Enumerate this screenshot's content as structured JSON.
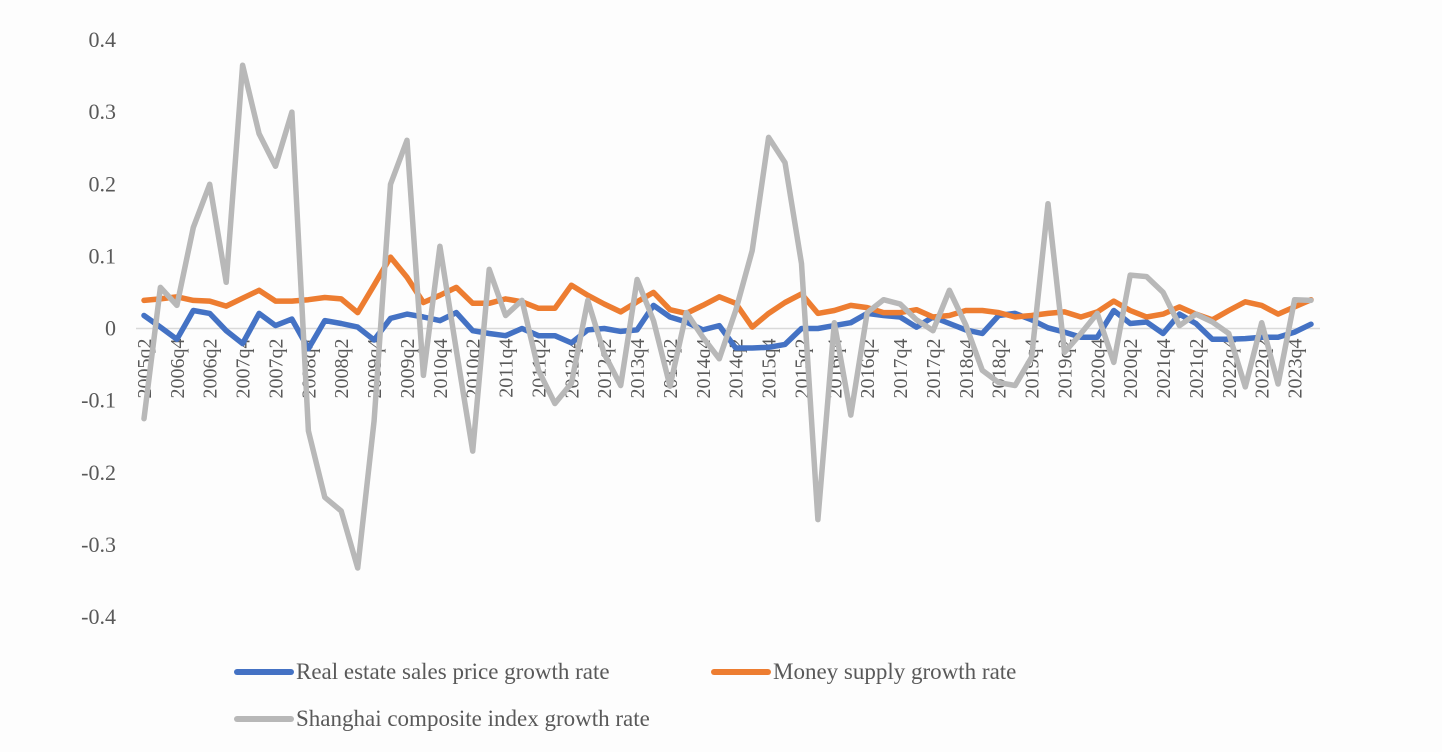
{
  "chart_data": {
    "type": "line",
    "title": "",
    "xlabel": "",
    "ylabel": "",
    "ylim": [
      -0.4,
      0.4
    ],
    "yticks": [
      "0.4",
      "0.3",
      "0.2",
      "0.1",
      "0",
      "-0.1",
      "-0.2",
      "-0.3",
      "-0.4"
    ],
    "ytick_values": [
      0.4,
      0.3,
      0.2,
      0.1,
      0,
      -0.1,
      -0.2,
      -0.3,
      -0.4
    ],
    "xtick_labels": [
      "2005q2",
      "2006q4",
      "2006q2",
      "2007q4",
      "2007q2",
      "2008q4",
      "2008q2",
      "2009q4",
      "2009q2",
      "2010q4",
      "2010q2",
      "2011q4",
      "2011q2",
      "2012q4",
      "2012q2",
      "2013q4",
      "2013q2",
      "2014q4",
      "2014q2",
      "2015q4",
      "2015q2",
      "2016q4",
      "2016q2",
      "2017q4",
      "2017q2",
      "2018q4",
      "2018q2",
      "2019q4",
      "2019q2",
      "2020q4",
      "2020q2",
      "2021q4",
      "2021q2",
      "2022q4",
      "2022q2",
      "2023q4"
    ],
    "points_per_label": 2,
    "zero_line": true,
    "grid": false,
    "legend_position": "bottom",
    "series": [
      {
        "name": "Real estate sales price growth rate",
        "color": "#4472C4",
        "values": [
          0.018,
          0.002,
          -0.015,
          0.025,
          0.021,
          -0.003,
          -0.021,
          0.021,
          0.004,
          0.013,
          -0.028,
          0.011,
          0.007,
          0.002,
          -0.016,
          0.014,
          0.02,
          0.016,
          0.011,
          0.022,
          -0.003,
          -0.007,
          -0.01,
          0.0,
          -0.01,
          -0.01,
          -0.02,
          -0.002,
          0.0,
          -0.004,
          -0.002,
          0.032,
          0.016,
          0.009,
          -0.002,
          0.004,
          -0.027,
          -0.027,
          -0.026,
          -0.022,
          0.0,
          0.0,
          0.004,
          0.008,
          0.021,
          0.018,
          0.016,
          0.002,
          0.016,
          0.007,
          -0.002,
          -0.007,
          0.018,
          0.021,
          0.012,
          0.001,
          -0.005,
          -0.012,
          -0.012,
          0.025,
          0.007,
          0.009,
          -0.007,
          0.02,
          0.007,
          -0.015,
          -0.015,
          -0.014,
          -0.012,
          -0.012,
          -0.005,
          0.006
        ]
      },
      {
        "name": "Money supply growth rate",
        "color": "#ED7D31",
        "values": [
          0.039,
          0.041,
          0.044,
          0.039,
          0.038,
          0.031,
          0.042,
          0.053,
          0.038,
          0.038,
          0.04,
          0.043,
          0.041,
          0.022,
          0.06,
          0.099,
          0.071,
          0.036,
          0.046,
          0.057,
          0.035,
          0.035,
          0.041,
          0.037,
          0.028,
          0.028,
          0.06,
          0.046,
          0.034,
          0.023,
          0.037,
          0.05,
          0.026,
          0.021,
          0.032,
          0.044,
          0.035,
          0.002,
          0.021,
          0.036,
          0.048,
          0.021,
          0.025,
          0.032,
          0.029,
          0.022,
          0.022,
          0.026,
          0.016,
          0.018,
          0.025,
          0.025,
          0.022,
          0.016,
          0.018,
          0.021,
          0.023,
          0.016,
          0.023,
          0.038,
          0.025,
          0.016,
          0.02,
          0.03,
          0.02,
          0.012,
          0.025,
          0.037,
          0.032,
          0.02,
          0.03,
          0.04
        ]
      },
      {
        "name": "Shanghai composite index growth rate",
        "color": "#B8B8B8",
        "values": [
          -0.125,
          0.057,
          0.032,
          0.14,
          0.2,
          0.064,
          0.365,
          0.27,
          0.225,
          0.3,
          -0.142,
          -0.234,
          -0.253,
          -0.332,
          -0.128,
          0.2,
          0.261,
          -0.065,
          0.114,
          -0.03,
          -0.17,
          0.082,
          0.018,
          0.039,
          -0.058,
          -0.104,
          -0.076,
          0.039,
          -0.035,
          -0.079,
          0.068,
          0.011,
          -0.08,
          0.022,
          -0.012,
          -0.042,
          0.025,
          0.108,
          0.265,
          0.23,
          0.09,
          -0.265,
          0.008,
          -0.12,
          0.022,
          0.04,
          0.034,
          0.012,
          -0.003,
          0.053,
          0.005,
          -0.058,
          -0.075,
          -0.079,
          -0.04,
          0.173,
          -0.033,
          -0.007,
          0.021,
          -0.047,
          0.074,
          0.072,
          0.05,
          0.004,
          0.02,
          0.009,
          -0.007,
          -0.081,
          0.008,
          -0.077,
          0.04,
          0.039
        ]
      }
    ]
  }
}
